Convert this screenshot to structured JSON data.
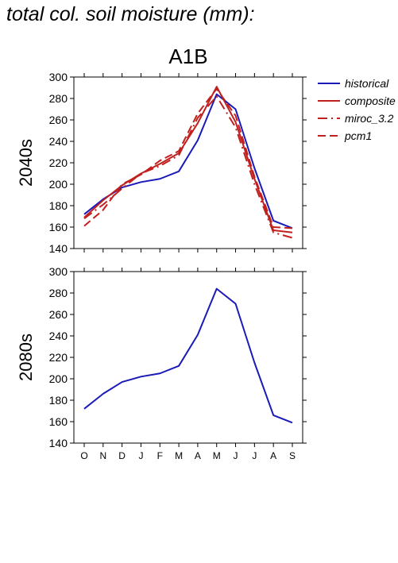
{
  "figure": {
    "title": "total col. soil moisture (mm):",
    "scenario": "A1B",
    "rows": [
      "2040s",
      "2080s"
    ]
  },
  "colors": {
    "historical": "#1a1ab8",
    "future": "#c0201e"
  },
  "chart_data": [
    {
      "type": "line",
      "panel": "2040s",
      "title": "A1B",
      "ylabel": "2040s",
      "ylim": [
        140,
        300
      ],
      "yticks": [
        140,
        160,
        180,
        200,
        220,
        240,
        260,
        280,
        300
      ],
      "categories": [
        "O",
        "N",
        "D",
        "J",
        "F",
        "M",
        "A",
        "M",
        "J",
        "J",
        "A",
        "S"
      ],
      "legend_placement": "right",
      "series": [
        {
          "name": "historical",
          "color": "#1a1ab8",
          "style": "solid",
          "values": [
            172,
            186,
            197,
            202,
            205,
            212,
            241,
            284,
            270,
            215,
            166,
            159
          ]
        },
        {
          "name": "composite",
          "color": "#c0201e",
          "style": "solid",
          "values": [
            169,
            185,
            199,
            210,
            219,
            229,
            257,
            291,
            258,
            205,
            157,
            155
          ]
        },
        {
          "name": "miroc_3.2",
          "color": "#c0201e",
          "style": "dashdot",
          "values": [
            168,
            181,
            196,
            210,
            217,
            227,
            262,
            282,
            253,
            200,
            155,
            150
          ]
        },
        {
          "name": "pcm1",
          "color": "#c0201e",
          "style": "dashed",
          "values": [
            161,
            176,
            200,
            209,
            222,
            231,
            266,
            289,
            264,
            207,
            160,
            159
          ]
        }
      ]
    },
    {
      "type": "line",
      "panel": "2080s",
      "ylabel": "2080s",
      "ylim": [
        140,
        300
      ],
      "yticks": [
        140,
        160,
        180,
        200,
        220,
        240,
        260,
        280,
        300
      ],
      "categories": [
        "O",
        "N",
        "D",
        "J",
        "F",
        "M",
        "A",
        "M",
        "J",
        "J",
        "A",
        "S"
      ],
      "series": [
        {
          "name": "historical",
          "color": "#1a1ab8",
          "style": "solid",
          "values": [
            172,
            186,
            197,
            202,
            205,
            212,
            241,
            284,
            270,
            215,
            166,
            159
          ]
        }
      ]
    }
  ]
}
